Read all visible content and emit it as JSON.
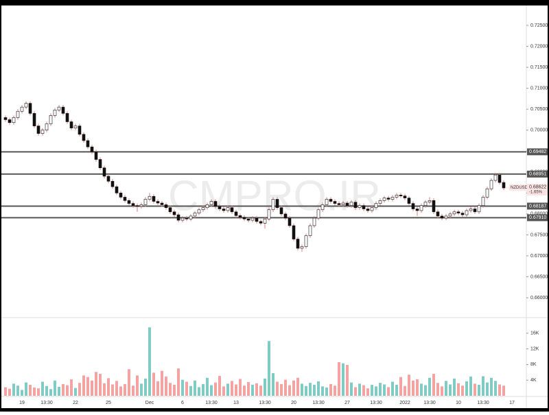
{
  "chart_data": {
    "type": "candlestick",
    "symbol": "NZDUSD",
    "watermark": "CMPRO.IR",
    "last_price": {
      "value": 0.68622,
      "label": "0.68622"
    },
    "change": "-1.65%",
    "up_color": "#ffffff",
    "down_color": "#111111",
    "wick_color": "#e07a7a",
    "volume_up_color": "#80cbc4",
    "volume_down_color": "#f4a3a3",
    "ylim": [
      0.65526,
      0.72975
    ],
    "yticks": [
      {
        "value": 0.66,
        "label": "0.66000"
      },
      {
        "value": 0.665,
        "label": "0.66500"
      },
      {
        "value": 0.67,
        "label": "0.67000"
      },
      {
        "value": 0.675,
        "label": "0.67500"
      },
      {
        "value": 0.68,
        "label": "0.68000"
      },
      {
        "value": 0.685,
        "label": "0.68500"
      },
      {
        "value": 0.69,
        "label": "0.69000"
      },
      {
        "value": 0.695,
        "label": "0.69500"
      },
      {
        "value": 0.7,
        "label": "0.70000"
      },
      {
        "value": 0.705,
        "label": "0.70500"
      },
      {
        "value": 0.71,
        "label": "0.71000"
      },
      {
        "value": 0.715,
        "label": "0.71500"
      },
      {
        "value": 0.72,
        "label": "0.72000"
      },
      {
        "value": 0.725,
        "label": "0.72500"
      }
    ],
    "levels": [
      {
        "value": 0.69482,
        "label": "0.69482"
      },
      {
        "value": 0.68951,
        "label": "0.68951"
      },
      {
        "value": 0.68187,
        "label": "0.68187"
      },
      {
        "value": 0.6791,
        "label": "0.67910"
      }
    ],
    "level_color": "#555555",
    "categories": [
      null,
      null,
      null,
      null,
      "19",
      null,
      null,
      null,
      null,
      null,
      "13:30",
      null,
      null,
      null,
      null,
      null,
      null,
      "22",
      null,
      null,
      null,
      null,
      null,
      null,
      null,
      "25",
      null,
      null,
      null,
      null,
      null,
      null,
      null,
      null,
      null,
      "Dec",
      null,
      null,
      null,
      null,
      null,
      null,
      null,
      "6",
      null,
      null,
      null,
      null,
      null,
      null,
      "13:30",
      null,
      null,
      null,
      null,
      null,
      "13",
      null,
      null,
      null,
      null,
      null,
      null,
      "13:30",
      null,
      null,
      null,
      null,
      null,
      null,
      "20",
      null,
      null,
      null,
      null,
      null,
      "13:30",
      null,
      null,
      null,
      null,
      null,
      null,
      "27",
      null,
      null,
      null,
      null,
      null,
      null,
      "13:30",
      null,
      null,
      null,
      null,
      null,
      null,
      "2022",
      null,
      null,
      null,
      null,
      null,
      "13:30",
      null,
      null,
      null,
      null,
      null,
      null,
      "10",
      null,
      null,
      null,
      null,
      null,
      "13:30",
      null,
      null,
      null,
      null,
      null,
      null,
      "17"
    ],
    "ohlc": [
      [
        0.703,
        0.7035,
        0.702,
        0.7025
      ],
      [
        0.7025,
        0.703,
        0.7013,
        0.7018
      ],
      [
        0.7018,
        0.7035,
        0.7013,
        0.703
      ],
      [
        0.703,
        0.705,
        0.7025,
        0.7045
      ],
      [
        0.7045,
        0.706,
        0.704,
        0.7055
      ],
      [
        0.7055,
        0.7069,
        0.705,
        0.7064
      ],
      [
        0.7064,
        0.7069,
        0.7035,
        0.704
      ],
      [
        0.704,
        0.7045,
        0.7005,
        0.701
      ],
      [
        0.701,
        0.7015,
        0.6987,
        0.6992
      ],
      [
        0.6992,
        0.7005,
        0.6987,
        0.7
      ],
      [
        0.7,
        0.702,
        0.6995,
        0.7015
      ],
      [
        0.7015,
        0.704,
        0.701,
        0.7035
      ],
      [
        0.7035,
        0.7053,
        0.703,
        0.7048
      ],
      [
        0.7048,
        0.706,
        0.7043,
        0.7055
      ],
      [
        0.7055,
        0.706,
        0.7035,
        0.704
      ],
      [
        0.704,
        0.7045,
        0.7015,
        0.702
      ],
      [
        0.702,
        0.7025,
        0.7,
        0.7005
      ],
      [
        0.7005,
        0.7015,
        0.7,
        0.701
      ],
      [
        0.701,
        0.7015,
        0.6985,
        0.699
      ],
      [
        0.699,
        0.6995,
        0.697,
        0.6975
      ],
      [
        0.6975,
        0.698,
        0.6955,
        0.696
      ],
      [
        0.696,
        0.6965,
        0.6943,
        0.6948
      ],
      [
        0.6948,
        0.6953,
        0.6925,
        0.693
      ],
      [
        0.693,
        0.6935,
        0.6905,
        0.691
      ],
      [
        0.691,
        0.6915,
        0.6885,
        0.689
      ],
      [
        0.689,
        0.6895,
        0.6873,
        0.6878
      ],
      [
        0.6878,
        0.6883,
        0.686,
        0.6865
      ],
      [
        0.6865,
        0.687,
        0.6845,
        0.685
      ],
      [
        0.685,
        0.6855,
        0.6835,
        0.684
      ],
      [
        0.684,
        0.6845,
        0.6827,
        0.6832
      ],
      [
        0.6832,
        0.6837,
        0.682,
        0.6825
      ],
      [
        0.6825,
        0.683,
        0.6815,
        0.682
      ],
      [
        0.682,
        0.6825,
        0.6805,
        0.6818
      ],
      [
        0.6818,
        0.6827,
        0.6813,
        0.6822
      ],
      [
        0.6822,
        0.684,
        0.6817,
        0.6835
      ],
      [
        0.6835,
        0.685,
        0.683,
        0.6842
      ],
      [
        0.6842,
        0.6847,
        0.6825,
        0.683
      ],
      [
        0.683,
        0.6835,
        0.6821,
        0.6826
      ],
      [
        0.6826,
        0.6831,
        0.6817,
        0.6822
      ],
      [
        0.6822,
        0.6827,
        0.681,
        0.6815
      ],
      [
        0.6815,
        0.682,
        0.68,
        0.6805
      ],
      [
        0.6805,
        0.681,
        0.6793,
        0.6798
      ],
      [
        0.6798,
        0.6803,
        0.678,
        0.6785
      ],
      [
        0.6785,
        0.6795,
        0.678,
        0.679
      ],
      [
        0.679,
        0.6795,
        0.6783,
        0.6788
      ],
      [
        0.6788,
        0.68,
        0.6783,
        0.6795
      ],
      [
        0.6795,
        0.6807,
        0.679,
        0.6802
      ],
      [
        0.6802,
        0.6815,
        0.6797,
        0.681
      ],
      [
        0.681,
        0.682,
        0.6805,
        0.6815
      ],
      [
        0.6815,
        0.6827,
        0.681,
        0.6822
      ],
      [
        0.6822,
        0.6835,
        0.6817,
        0.683
      ],
      [
        0.683,
        0.6835,
        0.6813,
        0.6818
      ],
      [
        0.6818,
        0.6823,
        0.6807,
        0.6812
      ],
      [
        0.6812,
        0.6817,
        0.6803,
        0.6808
      ],
      [
        0.6808,
        0.682,
        0.6803,
        0.6815
      ],
      [
        0.6815,
        0.682,
        0.68,
        0.6805
      ],
      [
        0.6805,
        0.681,
        0.6791,
        0.6796
      ],
      [
        0.6796,
        0.6801,
        0.6787,
        0.6792
      ],
      [
        0.6792,
        0.6797,
        0.6783,
        0.6788
      ],
      [
        0.6788,
        0.6793,
        0.678,
        0.6785
      ],
      [
        0.6785,
        0.6795,
        0.678,
        0.679
      ],
      [
        0.679,
        0.6795,
        0.6777,
        0.6782
      ],
      [
        0.6782,
        0.6787,
        0.6773,
        0.6778
      ],
      [
        0.6778,
        0.6793,
        0.6765,
        0.6788
      ],
      [
        0.6788,
        0.6815,
        0.6783,
        0.681
      ],
      [
        0.681,
        0.684,
        0.6805,
        0.6835
      ],
      [
        0.6835,
        0.684,
        0.681,
        0.6815
      ],
      [
        0.6815,
        0.682,
        0.6795,
        0.68
      ],
      [
        0.68,
        0.6805,
        0.6785,
        0.679
      ],
      [
        0.679,
        0.6795,
        0.6767,
        0.6772
      ],
      [
        0.6772,
        0.6777,
        0.6735,
        0.674
      ],
      [
        0.674,
        0.6745,
        0.6713,
        0.6718
      ],
      [
        0.6718,
        0.6727,
        0.671,
        0.6722
      ],
      [
        0.6722,
        0.6753,
        0.6717,
        0.6748
      ],
      [
        0.6748,
        0.6777,
        0.6743,
        0.6772
      ],
      [
        0.6772,
        0.6795,
        0.6767,
        0.679
      ],
      [
        0.679,
        0.6815,
        0.6785,
        0.681
      ],
      [
        0.681,
        0.6827,
        0.6805,
        0.6822
      ],
      [
        0.6822,
        0.684,
        0.6817,
        0.6835
      ],
      [
        0.6835,
        0.684,
        0.6825,
        0.683
      ],
      [
        0.683,
        0.6835,
        0.682,
        0.6825
      ],
      [
        0.6825,
        0.683,
        0.6817,
        0.6822
      ],
      [
        0.6822,
        0.6831,
        0.6817,
        0.6826
      ],
      [
        0.6826,
        0.6831,
        0.6815,
        0.682
      ],
      [
        0.682,
        0.6833,
        0.6815,
        0.6828
      ],
      [
        0.6828,
        0.6833,
        0.681,
        0.6815
      ],
      [
        0.6815,
        0.6825,
        0.681,
        0.682
      ],
      [
        0.682,
        0.6825,
        0.6807,
        0.6812
      ],
      [
        0.6812,
        0.6817,
        0.6803,
        0.6808
      ],
      [
        0.6808,
        0.682,
        0.6803,
        0.6815
      ],
      [
        0.6815,
        0.683,
        0.681,
        0.6825
      ],
      [
        0.6825,
        0.6837,
        0.682,
        0.6832
      ],
      [
        0.6832,
        0.6843,
        0.6827,
        0.6838
      ],
      [
        0.6838,
        0.6843,
        0.683,
        0.6835
      ],
      [
        0.6835,
        0.6845,
        0.683,
        0.684
      ],
      [
        0.684,
        0.685,
        0.6835,
        0.6845
      ],
      [
        0.6845,
        0.685,
        0.6838,
        0.6843
      ],
      [
        0.6843,
        0.6848,
        0.6833,
        0.6838
      ],
      [
        0.6838,
        0.6843,
        0.682,
        0.6825
      ],
      [
        0.6825,
        0.683,
        0.6807,
        0.6812
      ],
      [
        0.6812,
        0.6817,
        0.6795,
        0.6808
      ],
      [
        0.6808,
        0.6825,
        0.6803,
        0.682
      ],
      [
        0.682,
        0.6833,
        0.6815,
        0.6828
      ],
      [
        0.6828,
        0.684,
        0.6823,
        0.6832
      ],
      [
        0.6832,
        0.6837,
        0.68,
        0.6805
      ],
      [
        0.6805,
        0.681,
        0.679,
        0.6795
      ],
      [
        0.6795,
        0.68,
        0.6785,
        0.679
      ],
      [
        0.679,
        0.68,
        0.6785,
        0.6795
      ],
      [
        0.6795,
        0.6805,
        0.679,
        0.68
      ],
      [
        0.68,
        0.681,
        0.6795,
        0.6805
      ],
      [
        0.6805,
        0.681,
        0.6797,
        0.6802
      ],
      [
        0.6802,
        0.6807,
        0.6793,
        0.6798
      ],
      [
        0.6798,
        0.6813,
        0.6793,
        0.6808
      ],
      [
        0.6808,
        0.6817,
        0.6803,
        0.6812
      ],
      [
        0.6812,
        0.6817,
        0.68,
        0.6805
      ],
      [
        0.6805,
        0.6825,
        0.68,
        0.682
      ],
      [
        0.682,
        0.6845,
        0.6815,
        0.684
      ],
      [
        0.684,
        0.6865,
        0.6835,
        0.686
      ],
      [
        0.686,
        0.6885,
        0.6855,
        0.688
      ],
      [
        0.688,
        0.6898,
        0.6875,
        0.6893
      ],
      [
        0.6893,
        0.6898,
        0.687,
        0.6875
      ],
      [
        0.6875,
        0.688,
        0.6857,
        0.6862
      ],
      null,
      null
    ],
    "volume": {
      "ylim": [
        0,
        20000
      ],
      "yticks": [
        {
          "value": 4000,
          "label": "4K"
        },
        {
          "value": 8000,
          "label": "8K"
        },
        {
          "value": 12000,
          "label": "12K"
        },
        {
          "value": 16000,
          "label": "16K"
        }
      ],
      "values": [
        2200,
        1800,
        3100,
        2600,
        1500,
        3400,
        2800,
        2100,
        1900,
        3600,
        2500,
        1700,
        3900,
        2300,
        3000,
        2700,
        4200,
        2000,
        3300,
        5200,
        4800,
        3900,
        6100,
        5600,
        3200,
        4500,
        2900,
        3800,
        2400,
        3000,
        6800,
        2600,
        5200,
        3100,
        4400,
        17500,
        5900,
        3700,
        6400,
        4900,
        3300,
        2800,
        7000,
        4100,
        3600,
        2500,
        3900,
        2200,
        3000,
        4600,
        2700,
        3400,
        5100,
        2400,
        3100,
        3800,
        2900,
        4300,
        2600,
        3500,
        2800,
        3200,
        2600,
        4400,
        14000,
        5800,
        3600,
        3000,
        4100,
        2700,
        3900,
        4600,
        3100,
        2500,
        3300,
        2800,
        3700,
        2400,
        2100,
        3000,
        2600,
        8600,
        8300,
        7900,
        3400,
        2200,
        3100,
        2700,
        1900,
        2800,
        2400,
        3300,
        2900,
        2200,
        3600,
        2800,
        4800,
        2500,
        5400,
        3900,
        4200,
        3100,
        2700,
        4600,
        5600,
        3300,
        2400,
        3800,
        2900,
        4400,
        3200,
        2600,
        3700,
        4900,
        3100,
        2800,
        5000,
        3400,
        4600,
        3800,
        2900,
        2600,
        null,
        null
      ]
    }
  }
}
